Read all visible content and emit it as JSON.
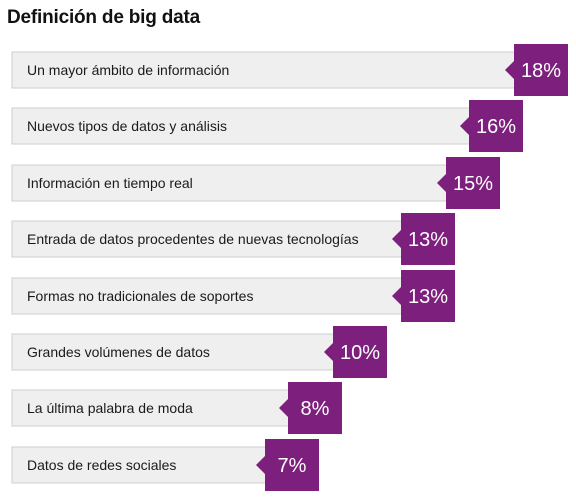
{
  "chart_data": {
    "type": "bar",
    "orientation": "horizontal",
    "title": "Definición de big data",
    "categories": [
      "Un mayor ámbito de información",
      "Nuevos tipos de datos y análisis",
      "Información en tiempo real",
      "Entrada de datos procedentes de nuevas tecnologías",
      "Formas no tradicionales de soportes",
      "Grandes volúmenes de datos",
      "La última palabra de moda",
      "Datos de redes sociales"
    ],
    "values": [
      18,
      16,
      15,
      13,
      13,
      10,
      8,
      7
    ],
    "value_labels": [
      "18%",
      "16%",
      "15%",
      "13%",
      "13%",
      "10%",
      "8%",
      "7%"
    ],
    "unit": "%",
    "grid": false,
    "legend": "none",
    "colors": {
      "bar_fill": "#efefef",
      "bar_border": "#cfcfcf",
      "value_box": "#7d1f7c",
      "value_text": "#ffffff",
      "label_text": "#1a1a1a"
    }
  }
}
